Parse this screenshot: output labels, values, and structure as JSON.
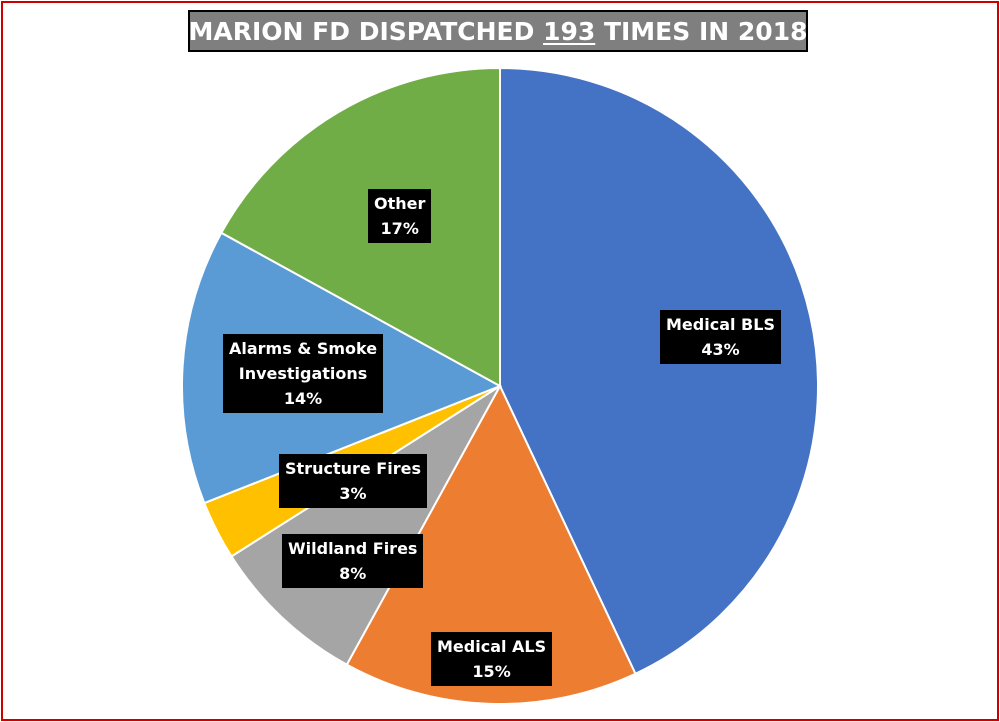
{
  "title": {
    "prefix": "MARION FD DISPATCHED ",
    "count": "193",
    "suffix": " TIMES IN 2018"
  },
  "colors": {
    "frame": "#cc0000",
    "title_bg": "#7f7f7f",
    "label_bg": "#000000"
  },
  "chart_data": {
    "type": "pie",
    "title": "MARION FD DISPATCHED 193 TIMES IN 2018",
    "slices": [
      {
        "name": "Medical BLS",
        "value": 43,
        "label": "43%",
        "color": "#4472c4"
      },
      {
        "name": "Medical ALS",
        "value": 15,
        "label": "15%",
        "color": "#ed7d31"
      },
      {
        "name": "Wildland Fires",
        "value": 8,
        "label": "8%",
        "color": "#a5a5a5"
      },
      {
        "name": "Structure Fires",
        "value": 3,
        "label": "3%",
        "color": "#ffc000"
      },
      {
        "name": "Alarms & Smoke Investigations",
        "name_lines": [
          "Alarms & Smoke",
          "Investigations"
        ],
        "value": 14,
        "label": "14%",
        "color": "#5b9bd5"
      },
      {
        "name": "Other",
        "value": 17,
        "label": "17%",
        "color": "#70ad47"
      }
    ]
  }
}
